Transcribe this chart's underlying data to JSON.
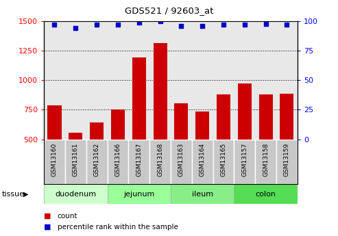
{
  "title": "GDS521 / 92603_at",
  "samples": [
    "GSM13160",
    "GSM13161",
    "GSM13162",
    "GSM13166",
    "GSM13167",
    "GSM13168",
    "GSM13163",
    "GSM13164",
    "GSM13165",
    "GSM13157",
    "GSM13158",
    "GSM13159"
  ],
  "counts": [
    790,
    555,
    640,
    750,
    1195,
    1315,
    805,
    735,
    880,
    970,
    880,
    885
  ],
  "percentiles": [
    97,
    94,
    97,
    97,
    99,
    100,
    96,
    96,
    97,
    97,
    98,
    97
  ],
  "tissues": [
    {
      "label": "duodenum",
      "start": 0,
      "end": 3,
      "color": "#ccffcc"
    },
    {
      "label": "jejunum",
      "start": 3,
      "end": 6,
      "color": "#99ff99"
    },
    {
      "label": "ileum",
      "start": 6,
      "end": 9,
      "color": "#88ee88"
    },
    {
      "label": "colon",
      "start": 9,
      "end": 12,
      "color": "#55dd55"
    }
  ],
  "bar_color": "#cc0000",
  "dot_color": "#0000cc",
  "ylim_left": [
    500,
    1500
  ],
  "ylim_right": [
    0,
    100
  ],
  "yticks_left": [
    500,
    750,
    1000,
    1250,
    1500
  ],
  "yticks_right": [
    0,
    25,
    50,
    75,
    100
  ],
  "plot_bg_color": "#e8e8e8",
  "sample_box_color": "#c8c8c8",
  "legend_count_label": "count",
  "legend_pct_label": "percentile rank within the sample"
}
